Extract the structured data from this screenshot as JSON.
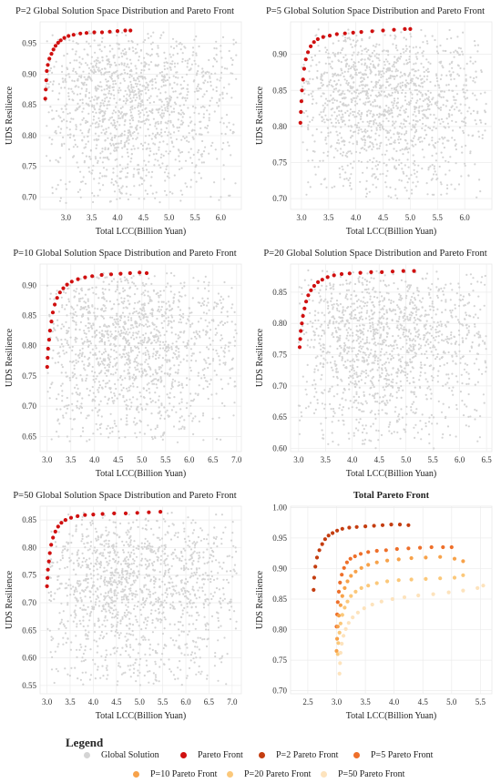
{
  "colors": {
    "global": "#d4d4d4",
    "pareto": "#d01010",
    "p2": "#c43d10",
    "p5": "#ee6f2a",
    "p10": "#f7a24a",
    "p20": "#fbc87a",
    "p50": "#fde3bd"
  },
  "legend": {
    "title": "Legend",
    "items": [
      {
        "label": "Global Solution",
        "color_key": "global"
      },
      {
        "label": "Pareto Front",
        "color_key": "pareto"
      },
      {
        "label": "P=2 Pareto Front",
        "color_key": "p2"
      },
      {
        "label": "P=5 Pareto Front",
        "color_key": "p5"
      },
      {
        "label": "P=10 Pareto Front",
        "color_key": "p10"
      },
      {
        "label": "P=20 Pareto Front",
        "color_key": "p20"
      },
      {
        "label": "P=50 Pareto Front",
        "color_key": "p50"
      }
    ]
  },
  "chart_data": [
    {
      "type": "scatter",
      "title": "P=2 Global Solution Space Distribution and Pareto Front",
      "xlabel": "Total LCC(Billion Yuan)",
      "ylabel": "UDS Resilience",
      "xlim": [
        2.5,
        6.4
      ],
      "ylim": [
        0.68,
        0.985
      ],
      "xticks": [
        "3.0",
        "3.5",
        "4.0",
        "4.5",
        "5.0",
        "5.5",
        "6.0"
      ],
      "yticks": [
        "0.70",
        "0.75",
        "0.80",
        "0.85",
        "0.90",
        "0.95"
      ],
      "grid": true,
      "series": [
        {
          "name": "Global Solution",
          "kind": "cloud",
          "color_key": "global",
          "x_range": [
            2.6,
            6.3
          ],
          "y_range": [
            0.69,
            0.97
          ],
          "center": [
            3.9,
            0.88
          ]
        },
        {
          "name": "Pareto Front",
          "color_key": "pareto",
          "x": [
            2.6,
            2.61,
            2.62,
            2.63,
            2.65,
            2.68,
            2.72,
            2.76,
            2.8,
            2.85,
            2.9,
            2.97,
            3.05,
            3.15,
            3.28,
            3.4,
            3.55,
            3.7,
            3.85,
            4.0,
            4.15,
            4.25
          ],
          "y": [
            0.86,
            0.875,
            0.89,
            0.905,
            0.915,
            0.925,
            0.933,
            0.94,
            0.946,
            0.951,
            0.955,
            0.959,
            0.962,
            0.964,
            0.966,
            0.967,
            0.968,
            0.968,
            0.969,
            0.97,
            0.971,
            0.971
          ]
        }
      ]
    },
    {
      "type": "scatter",
      "title": "P=5 Global Solution Space Distribution and Pareto Front",
      "xlabel": "Total LCC(Billion Yuan)",
      "ylabel": "UDS Resilience",
      "xlim": [
        2.8,
        6.5
      ],
      "ylim": [
        0.685,
        0.945
      ],
      "xticks": [
        "3.0",
        "3.5",
        "4.0",
        "4.5",
        "5.0",
        "5.5",
        "6.0"
      ],
      "yticks": [
        "0.70",
        "0.75",
        "0.80",
        "0.85",
        "0.90"
      ],
      "grid": true,
      "series": [
        {
          "name": "Global Solution",
          "kind": "cloud",
          "color_key": "global",
          "x_range": [
            3.0,
            6.4
          ],
          "y_range": [
            0.7,
            0.935
          ],
          "center": [
            4.2,
            0.86
          ]
        },
        {
          "name": "Pareto Front",
          "color_key": "pareto",
          "x": [
            2.98,
            2.99,
            3.0,
            3.01,
            3.03,
            3.05,
            3.08,
            3.12,
            3.17,
            3.23,
            3.3,
            3.4,
            3.52,
            3.65,
            3.8,
            3.95,
            4.1,
            4.3,
            4.5,
            4.7,
            4.9,
            5.0
          ],
          "y": [
            0.805,
            0.82,
            0.835,
            0.85,
            0.865,
            0.88,
            0.893,
            0.903,
            0.911,
            0.917,
            0.921,
            0.924,
            0.926,
            0.928,
            0.929,
            0.93,
            0.931,
            0.932,
            0.933,
            0.934,
            0.935,
            0.935
          ]
        }
      ]
    },
    {
      "type": "scatter",
      "title": "P=10 Global Solution Space Distribution and Pareto Front",
      "xlabel": "Total LCC(Billion Yuan)",
      "ylabel": "UDS Resilience",
      "xlim": [
        2.85,
        7.1
      ],
      "ylim": [
        0.625,
        0.935
      ],
      "xticks": [
        "3.0",
        "3.5",
        "4.0",
        "4.5",
        "5.0",
        "5.5",
        "6.0",
        "6.5",
        "7.0"
      ],
      "yticks": [
        "0.65",
        "0.70",
        "0.75",
        "0.80",
        "0.85",
        "0.90"
      ],
      "grid": true,
      "series": [
        {
          "name": "Global Solution",
          "kind": "cloud",
          "color_key": "global",
          "x_range": [
            3.0,
            7.0
          ],
          "y_range": [
            0.64,
            0.92
          ],
          "center": [
            4.4,
            0.83
          ]
        },
        {
          "name": "Pareto Front",
          "color_key": "pareto",
          "x": [
            3.0,
            3.01,
            3.02,
            3.04,
            3.06,
            3.09,
            3.12,
            3.16,
            3.21,
            3.27,
            3.34,
            3.42,
            3.52,
            3.65,
            3.8,
            3.95,
            4.15,
            4.35,
            4.55,
            4.75,
            4.95,
            5.1
          ],
          "y": [
            0.765,
            0.78,
            0.795,
            0.81,
            0.825,
            0.84,
            0.855,
            0.868,
            0.879,
            0.888,
            0.895,
            0.901,
            0.906,
            0.91,
            0.913,
            0.915,
            0.917,
            0.918,
            0.919,
            0.92,
            0.921,
            0.92
          ]
        }
      ]
    },
    {
      "type": "scatter",
      "title": "P=20 Global Solution Space Distribution and Pareto Front",
      "xlabel": "Total LCC(Billion Yuan)",
      "ylabel": "UDS Resilience",
      "xlim": [
        2.85,
        6.6
      ],
      "ylim": [
        0.595,
        0.895
      ],
      "xticks": [
        "3.0",
        "3.5",
        "4.0",
        "4.5",
        "5.0",
        "5.5",
        "6.0",
        "6.5"
      ],
      "yticks": [
        "0.60",
        "0.65",
        "0.70",
        "0.75",
        "0.80",
        "0.85"
      ],
      "grid": true,
      "series": [
        {
          "name": "Global Solution",
          "kind": "cloud",
          "color_key": "global",
          "x_range": [
            3.0,
            6.5
          ],
          "y_range": [
            0.6,
            0.885
          ],
          "center": [
            4.3,
            0.8
          ]
        },
        {
          "name": "Pareto Front",
          "color_key": "pareto",
          "x": [
            3.02,
            3.03,
            3.04,
            3.06,
            3.08,
            3.11,
            3.14,
            3.18,
            3.23,
            3.29,
            3.36,
            3.44,
            3.54,
            3.66,
            3.8,
            3.95,
            4.15,
            4.35,
            4.55,
            4.75,
            4.95,
            5.15
          ],
          "y": [
            0.762,
            0.775,
            0.788,
            0.8,
            0.812,
            0.824,
            0.835,
            0.845,
            0.853,
            0.86,
            0.866,
            0.87,
            0.874,
            0.877,
            0.879,
            0.88,
            0.881,
            0.882,
            0.882,
            0.883,
            0.884,
            0.884
          ]
        }
      ]
    },
    {
      "type": "scatter",
      "title": "P=50 Global Solution Space Distribution and Pareto Front",
      "xlabel": "Total LCC(Billion Yuan)",
      "ylabel": "UDS Resilience",
      "xlim": [
        2.85,
        7.2
      ],
      "ylim": [
        0.535,
        0.875
      ],
      "xticks": [
        "3.0",
        "3.5",
        "4.0",
        "4.5",
        "5.0",
        "5.5",
        "6.0",
        "6.5",
        "7.0"
      ],
      "yticks": [
        "0.55",
        "0.60",
        "0.65",
        "0.70",
        "0.75",
        "0.80",
        "0.85"
      ],
      "grid": true,
      "series": [
        {
          "name": "Global Solution",
          "kind": "cloud",
          "color_key": "global",
          "x_range": [
            3.0,
            7.1
          ],
          "y_range": [
            0.55,
            0.865
          ],
          "center": [
            4.5,
            0.77
          ]
        },
        {
          "name": "Pareto Front",
          "color_key": "pareto",
          "x": [
            3.0,
            3.01,
            3.02,
            3.04,
            3.06,
            3.09,
            3.13,
            3.18,
            3.24,
            3.31,
            3.4,
            3.52,
            3.66,
            3.82,
            4.0,
            4.2,
            4.45,
            4.7,
            4.95,
            5.2,
            5.45
          ],
          "y": [
            0.73,
            0.745,
            0.76,
            0.775,
            0.79,
            0.805,
            0.818,
            0.829,
            0.838,
            0.845,
            0.85,
            0.854,
            0.857,
            0.859,
            0.86,
            0.861,
            0.862,
            0.862,
            0.863,
            0.864,
            0.865
          ]
        }
      ]
    },
    {
      "type": "scatter",
      "title": "Total Pareto Front",
      "xlabel": "Total LCC(Billion Yuan)",
      "ylabel": "UDS Resilience",
      "xlim": [
        2.2,
        5.7
      ],
      "ylim": [
        0.695,
        1.002
      ],
      "xticks": [
        "2.5",
        "3.0",
        "3.5",
        "4.0",
        "4.5",
        "5.0",
        "5.5"
      ],
      "yticks": [
        "0.70",
        "0.75",
        "0.80",
        "0.85",
        "0.90",
        "0.95",
        "1.00"
      ],
      "grid": true,
      "series": [
        {
          "name": "P=2 Pareto Front",
          "color_key": "p2",
          "x": [
            2.6,
            2.61,
            2.63,
            2.66,
            2.7,
            2.75,
            2.8,
            2.86,
            2.93,
            3.01,
            3.1,
            3.22,
            3.35,
            3.5,
            3.65,
            3.8,
            3.95,
            4.1,
            4.25
          ],
          "y": [
            0.865,
            0.885,
            0.903,
            0.918,
            0.93,
            0.94,
            0.948,
            0.954,
            0.958,
            0.962,
            0.965,
            0.967,
            0.968,
            0.969,
            0.97,
            0.971,
            0.972,
            0.972,
            0.971
          ]
        },
        {
          "name": "P=5 Pareto Front",
          "color_key": "p5",
          "x": [
            3.0,
            3.01,
            3.02,
            3.04,
            3.06,
            3.09,
            3.13,
            3.18,
            3.24,
            3.32,
            3.42,
            3.55,
            3.7,
            3.86,
            4.05,
            4.25,
            4.45,
            4.65,
            4.85,
            5.0
          ],
          "y": [
            0.805,
            0.825,
            0.845,
            0.862,
            0.877,
            0.89,
            0.901,
            0.91,
            0.916,
            0.92,
            0.924,
            0.927,
            0.929,
            0.93,
            0.932,
            0.933,
            0.934,
            0.935,
            0.935,
            0.935
          ]
        },
        {
          "name": "P=10 Pareto Front",
          "color_key": "p10",
          "x": [
            3.0,
            3.01,
            3.02,
            3.04,
            3.07,
            3.1,
            3.14,
            3.19,
            3.25,
            3.33,
            3.43,
            3.55,
            3.7,
            3.88,
            4.08,
            4.3,
            4.55,
            4.8,
            5.05,
            5.2
          ],
          "y": [
            0.765,
            0.785,
            0.805,
            0.823,
            0.84,
            0.855,
            0.868,
            0.879,
            0.888,
            0.895,
            0.901,
            0.906,
            0.91,
            0.913,
            0.915,
            0.917,
            0.918,
            0.919,
            0.916,
            0.912
          ]
        },
        {
          "name": "P=20 Pareto Front",
          "color_key": "p20",
          "x": [
            3.02,
            3.03,
            3.05,
            3.07,
            3.1,
            3.14,
            3.19,
            3.25,
            3.33,
            3.43,
            3.55,
            3.7,
            3.88,
            4.08,
            4.3,
            4.55,
            4.8,
            5.05,
            5.2
          ],
          "y": [
            0.76,
            0.778,
            0.795,
            0.81,
            0.824,
            0.836,
            0.846,
            0.855,
            0.862,
            0.868,
            0.872,
            0.876,
            0.879,
            0.881,
            0.882,
            0.883,
            0.884,
            0.885,
            0.889
          ]
        },
        {
          "name": "P=50 Pareto Front",
          "color_key": "p50",
          "x": [
            3.05,
            3.06,
            3.07,
            3.09,
            3.12,
            3.16,
            3.21,
            3.28,
            3.37,
            3.48,
            3.62,
            3.78,
            3.97,
            4.18,
            4.42,
            4.68,
            4.95,
            5.2,
            5.45,
            5.55
          ],
          "y": [
            0.728,
            0.745,
            0.762,
            0.777,
            0.79,
            0.801,
            0.811,
            0.82,
            0.828,
            0.835,
            0.841,
            0.846,
            0.85,
            0.853,
            0.856,
            0.858,
            0.861,
            0.864,
            0.868,
            0.872
          ]
        }
      ]
    }
  ]
}
